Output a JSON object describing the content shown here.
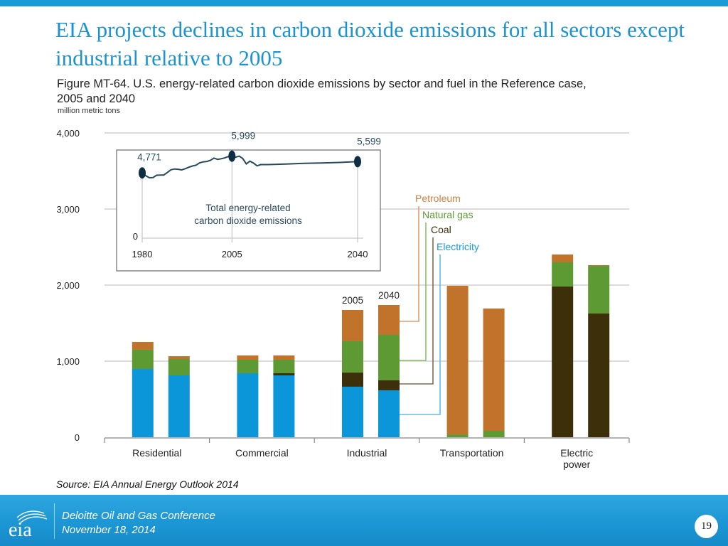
{
  "slide": {
    "title": "EIA projects declines in carbon dioxide emissions for all sectors except industrial relative to 2005",
    "source": "Source: EIA Annual Energy Outlook 2014",
    "footer": {
      "logo_text": "eia",
      "conference": "Deloitte Oil and Gas Conference",
      "date": "November 18, 2014",
      "page_number": "19"
    }
  },
  "chart_data": {
    "type": "bar",
    "stacked": true,
    "title": "Figure MT-64. U.S. energy-related carbon dioxide emissions by sector and fuel in the Reference case, 2005 and 2040",
    "ylabel": "million metric tons",
    "xlabel": "",
    "ylim": [
      0,
      4000
    ],
    "yticks": [
      0,
      1000,
      2000,
      3000,
      4000
    ],
    "ytick_labels": [
      "0",
      "1,000",
      "2,000",
      "3,000",
      "4,000"
    ],
    "grid": true,
    "categories": [
      "Residential",
      "Commercial",
      "Industrial",
      "Transportation",
      "Electric power"
    ],
    "years": [
      "2005",
      "2040"
    ],
    "year_labels_shown_on": "Industrial",
    "colors": {
      "Electricity": "#0a96d8",
      "Coal": "#3d2f0a",
      "Natural gas": "#5e9a33",
      "Petroleum": "#c1722b"
    },
    "legend_order": [
      "Petroleum",
      "Natural gas",
      "Coal",
      "Electricity"
    ],
    "legend_placement": "callout lines pointing to Industrial 2040 bar",
    "series": [
      {
        "name": "Electricity",
        "values": {
          "Residential": [
            897,
            813
          ],
          "Commercial": [
            841,
            813
          ],
          "Industrial": [
            664,
            617
          ],
          "Transportation": [
            0,
            0
          ],
          "Electric power": [
            0,
            0
          ]
        }
      },
      {
        "name": "Coal",
        "values": {
          "Residential": [
            0,
            0
          ],
          "Commercial": [
            0,
            28
          ],
          "Industrial": [
            186,
            131
          ],
          "Transportation": [
            0,
            0
          ],
          "Electric power": [
            1981,
            1626
          ]
        }
      },
      {
        "name": "Natural gas",
        "values": {
          "Residential": [
            253,
            215
          ],
          "Commercial": [
            178,
            178
          ],
          "Industrial": [
            412,
            598
          ],
          "Transportation": [
            37,
            84
          ],
          "Electric power": [
            318,
            626
          ]
        }
      },
      {
        "name": "Petroleum",
        "values": {
          "Residential": [
            102,
            37
          ],
          "Commercial": [
            56,
            56
          ],
          "Industrial": [
            411,
            392
          ],
          "Transportation": [
            1954,
            1608
          ],
          "Electric power": [
            103,
            10
          ]
        }
      }
    ],
    "inset": {
      "type": "line",
      "title": "Total energy-related carbon dioxide emissions",
      "xticks": [
        "1980",
        "2005",
        "2040"
      ],
      "ytick": "0",
      "xlim": [
        1980,
        2040
      ],
      "ylim": [
        0,
        6500
      ],
      "annotations": [
        {
          "year": 1980,
          "value": 4771,
          "label": "4,771"
        },
        {
          "year": 2005,
          "value": 5999,
          "label": "5,999"
        },
        {
          "year": 2040,
          "value": 5599,
          "label": "5,599"
        }
      ],
      "points": [
        [
          1980,
          4771
        ],
        [
          1981,
          4560
        ],
        [
          1982,
          4420
        ],
        [
          1983,
          4430
        ],
        [
          1984,
          4600
        ],
        [
          1985,
          4610
        ],
        [
          1986,
          4620
        ],
        [
          1987,
          4800
        ],
        [
          1988,
          5000
        ],
        [
          1989,
          5060
        ],
        [
          1990,
          5040
        ],
        [
          1991,
          4990
        ],
        [
          1992,
          5080
        ],
        [
          1993,
          5190
        ],
        [
          1994,
          5280
        ],
        [
          1995,
          5340
        ],
        [
          1996,
          5510
        ],
        [
          1997,
          5580
        ],
        [
          1998,
          5610
        ],
        [
          1999,
          5690
        ],
        [
          2000,
          5860
        ],
        [
          2001,
          5760
        ],
        [
          2002,
          5810
        ],
        [
          2003,
          5870
        ],
        [
          2004,
          5970
        ],
        [
          2005,
          5999
        ],
        [
          2006,
          5920
        ],
        [
          2007,
          6000
        ],
        [
          2008,
          5830
        ],
        [
          2009,
          5430
        ],
        [
          2010,
          5630
        ],
        [
          2011,
          5490
        ],
        [
          2012,
          5290
        ],
        [
          2013,
          5380
        ],
        [
          2015,
          5380
        ],
        [
          2020,
          5420
        ],
        [
          2025,
          5470
        ],
        [
          2030,
          5500
        ],
        [
          2035,
          5540
        ],
        [
          2040,
          5599
        ]
      ]
    }
  }
}
